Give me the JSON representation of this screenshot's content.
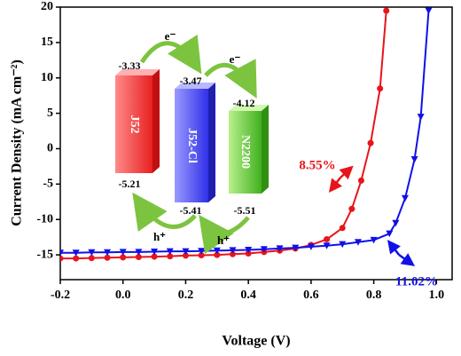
{
  "chart_data": {
    "type": "line",
    "x_label": "Voltage (V)",
    "y_label": "Current Density (mA cm⁻²)",
    "xlim": [
      -0.2,
      1.05
    ],
    "ylim": [
      -18.5,
      20
    ],
    "xticks": [
      -0.2,
      {
        "value": 0,
        "label": "0.0"
      },
      0.2,
      0.4,
      0.6,
      0.8,
      {
        "value": 1,
        "label": "1.0"
      }
    ],
    "yticks": [
      -15,
      -10,
      -5,
      0,
      5,
      10,
      15,
      20
    ],
    "grid": false,
    "series": [
      {
        "color": "#e8141b",
        "marker": "circle",
        "x": [
          -0.2,
          -0.15,
          -0.1,
          -0.05,
          0,
          0.05,
          0.1,
          0.15,
          0.2,
          0.25,
          0.3,
          0.35,
          0.4,
          0.45,
          0.5,
          0.55,
          0.6,
          0.65,
          0.7,
          0.73,
          0.76,
          0.79,
          0.82,
          0.84
        ],
        "values": [
          -15.5,
          -15.5,
          -15.45,
          -15.4,
          -15.35,
          -15.3,
          -15.25,
          -15.2,
          -15.1,
          -15.05,
          -15.0,
          -14.9,
          -14.8,
          -14.6,
          -14.4,
          -14.1,
          -13.6,
          -12.8,
          -11.2,
          -8.5,
          -4.5,
          0.8,
          8.5,
          19.5
        ]
      },
      {
        "color": "#1010e8",
        "marker": "triangle-down",
        "x": [
          -0.2,
          -0.15,
          -0.1,
          -0.05,
          0,
          0.05,
          0.1,
          0.15,
          0.2,
          0.25,
          0.3,
          0.35,
          0.4,
          0.45,
          0.5,
          0.55,
          0.6,
          0.65,
          0.7,
          0.75,
          0.8,
          0.85,
          0.87,
          0.9,
          0.93,
          0.95,
          0.975
        ],
        "values": [
          -14.7,
          -14.7,
          -14.65,
          -14.65,
          -14.6,
          -14.6,
          -14.55,
          -14.5,
          -14.5,
          -14.45,
          -14.4,
          -14.35,
          -14.3,
          -14.2,
          -14.1,
          -14.0,
          -13.85,
          -13.7,
          -13.5,
          -13.2,
          -12.9,
          -12.0,
          -10.5,
          -7.0,
          -1.5,
          4.5,
          19.5
        ]
      }
    ],
    "annotations": [
      {
        "text": "8.55%",
        "color": "#e8141b"
      },
      {
        "text": "11.02%",
        "color": "#1010e8"
      }
    ],
    "inset": {
      "materials": [
        {
          "label": "J52",
          "lumo": -3.33,
          "homo": -5.21
        },
        {
          "label": "J52-Cl",
          "lumo": -3.47,
          "homo": -5.41
        },
        {
          "label": "N2200",
          "lumo": -4.12,
          "homo": -5.51
        }
      ],
      "electron": "e⁻",
      "hole": "h⁺"
    }
  }
}
